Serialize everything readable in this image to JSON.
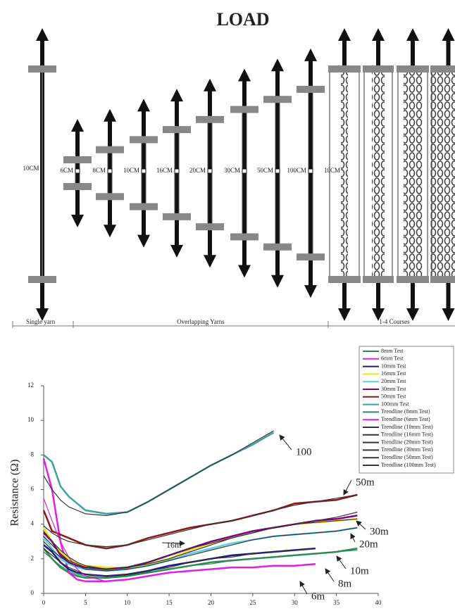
{
  "diagram": {
    "title": "LOAD",
    "sample_labels": [
      "10CM",
      "6CM",
      "8CM",
      "10CM",
      "16CM",
      "20CM",
      "30CM",
      "50CM",
      "100CM",
      "10CM"
    ],
    "group_labels": [
      "Single yarn",
      "Overlapping Yarns",
      "1-4 Courses"
    ]
  },
  "chart_data": {
    "type": "line",
    "y_label": "Resistance (Ω)",
    "x": [
      0,
      1,
      2,
      3,
      4,
      5,
      7.5,
      10,
      12.5,
      15,
      17.5,
      20,
      22.5,
      25,
      27.5,
      30,
      32.5,
      35,
      37.5
    ],
    "xlim": [
      0,
      40
    ],
    "xticks": [
      0,
      5,
      10,
      15,
      20,
      25,
      30,
      35,
      40
    ],
    "ylim": [
      0,
      12
    ],
    "yticks": [
      0,
      2,
      4,
      6,
      8,
      10,
      12
    ],
    "series": [
      {
        "name": "8mm Test",
        "color": "#2e8b57",
        "values": [
          2.6,
          2.0,
          1.5,
          1.2,
          1.0,
          0.9,
          0.9,
          1.0,
          1.2,
          1.4,
          1.6,
          1.8,
          1.9,
          2.0,
          2.1,
          2.2,
          2.3,
          2.4,
          2.6
        ]
      },
      {
        "name": "6mm Test",
        "color": "#e020e0",
        "values": [
          7.8,
          6.0,
          3.0,
          1.2,
          0.8,
          0.7,
          0.7,
          0.8,
          1.0,
          1.2,
          1.3,
          1.4,
          1.5,
          1.5,
          1.6,
          1.6,
          1.7,
          null,
          null
        ]
      },
      {
        "name": "10mm Test",
        "color": "#1a1a80",
        "values": [
          2.8,
          2.4,
          1.8,
          1.4,
          1.2,
          1.1,
          1.0,
          1.1,
          1.3,
          1.6,
          1.8,
          2.0,
          2.2,
          2.3,
          2.4,
          2.5,
          2.6,
          null,
          null
        ]
      },
      {
        "name": "16mm Test",
        "color": "#f0e020",
        "values": [
          3.8,
          3.0,
          2.4,
          2.0,
          1.7,
          1.6,
          1.5,
          1.5,
          1.7,
          2.0,
          2.5,
          2.9,
          3.3,
          3.6,
          3.8,
          4.0,
          4.1,
          4.2,
          4.3
        ]
      },
      {
        "name": "20mm Test",
        "color": "#60d0e0",
        "values": [
          3.2,
          2.6,
          2.0,
          1.7,
          1.5,
          1.4,
          1.3,
          1.4,
          1.6,
          1.9,
          2.3,
          2.6,
          2.9,
          3.1,
          3.3,
          3.4,
          3.5,
          3.6,
          3.8
        ]
      },
      {
        "name": "30mm Test",
        "color": "#800080",
        "values": [
          3.5,
          3.0,
          2.2,
          1.8,
          1.6,
          1.5,
          1.4,
          1.5,
          1.8,
          2.2,
          2.6,
          3.0,
          3.3,
          3.6,
          3.8,
          4.0,
          4.2,
          4.3,
          4.5
        ]
      },
      {
        "name": "50mm Test",
        "color": "#8b1a1a",
        "values": [
          4.8,
          3.6,
          3.4,
          3.2,
          3.0,
          2.8,
          2.6,
          2.8,
          3.2,
          3.5,
          3.8,
          4.0,
          4.2,
          4.5,
          4.8,
          5.2,
          5.3,
          5.4,
          5.7
        ]
      },
      {
        "name": "100mm Test",
        "color": "#40a0a0",
        "values": [
          8.0,
          7.6,
          6.2,
          5.6,
          5.2,
          4.8,
          4.6,
          4.7,
          5.3,
          6.0,
          6.7,
          7.4,
          8.0,
          8.6,
          9.3,
          null,
          null,
          null,
          null
        ]
      },
      {
        "name": "Trendline (8mm Test)",
        "color": "#2e8b57",
        "values": [
          2.4,
          2.0,
          1.6,
          1.3,
          1.1,
          1.0,
          0.9,
          1.0,
          1.2,
          1.4,
          1.6,
          1.7,
          1.9,
          2.0,
          2.1,
          2.2,
          2.3,
          2.4,
          2.5
        ]
      },
      {
        "name": "Trendline (6mm Test)",
        "color": "#e020e0",
        "values": [
          5.5,
          4.2,
          3.0,
          2.1,
          1.4,
          1.0,
          0.7,
          0.8,
          1.0,
          1.2,
          1.3,
          1.4,
          1.5,
          1.5,
          1.6,
          1.6,
          1.7,
          null,
          null
        ]
      },
      {
        "name": "Trendline (10mm Test)",
        "color": "#333333",
        "values": [
          2.6,
          2.2,
          1.8,
          1.5,
          1.3,
          1.1,
          1.0,
          1.1,
          1.3,
          1.5,
          1.8,
          2.0,
          2.1,
          2.3,
          2.4,
          2.5,
          2.6,
          null,
          null
        ]
      },
      {
        "name": "Trendline (16mm Test)",
        "color": "#333333",
        "values": [
          3.6,
          3.0,
          2.5,
          2.1,
          1.8,
          1.6,
          1.4,
          1.5,
          1.7,
          2.0,
          2.4,
          2.8,
          3.2,
          3.5,
          3.8,
          4.0,
          4.1,
          4.2,
          4.3
        ]
      },
      {
        "name": "Trendline (20mm Test)",
        "color": "#333333",
        "values": [
          3.0,
          2.5,
          2.1,
          1.8,
          1.6,
          1.4,
          1.3,
          1.4,
          1.6,
          1.9,
          2.2,
          2.5,
          2.8,
          3.1,
          3.3,
          3.4,
          3.5,
          3.6,
          3.8
        ]
      },
      {
        "name": "Trendline (30mm Test)",
        "color": "#333333",
        "values": [
          3.3,
          2.8,
          2.3,
          1.9,
          1.7,
          1.5,
          1.4,
          1.5,
          1.8,
          2.2,
          2.6,
          2.9,
          3.2,
          3.5,
          3.8,
          4.0,
          4.2,
          4.4,
          4.7
        ]
      },
      {
        "name": "Trendline (50mm Test)",
        "color": "#333333",
        "values": [
          3.9,
          3.5,
          3.2,
          3.0,
          2.9,
          2.8,
          2.7,
          2.8,
          3.1,
          3.4,
          3.7,
          4.0,
          4.2,
          4.5,
          4.8,
          5.1,
          5.3,
          5.5,
          5.7
        ]
      },
      {
        "name": "Trendline (100mm Test)",
        "color": "#333333",
        "values": [
          6.8,
          6.0,
          5.4,
          5.0,
          4.8,
          4.6,
          4.5,
          4.7,
          5.3,
          6.0,
          6.7,
          7.4,
          8.0,
          8.7,
          9.4,
          null,
          null,
          null,
          null
        ]
      }
    ],
    "annotations": [
      "100",
      "50m",
      "30m",
      "20m",
      "10m",
      "8m",
      "6m",
      "16m"
    ]
  }
}
